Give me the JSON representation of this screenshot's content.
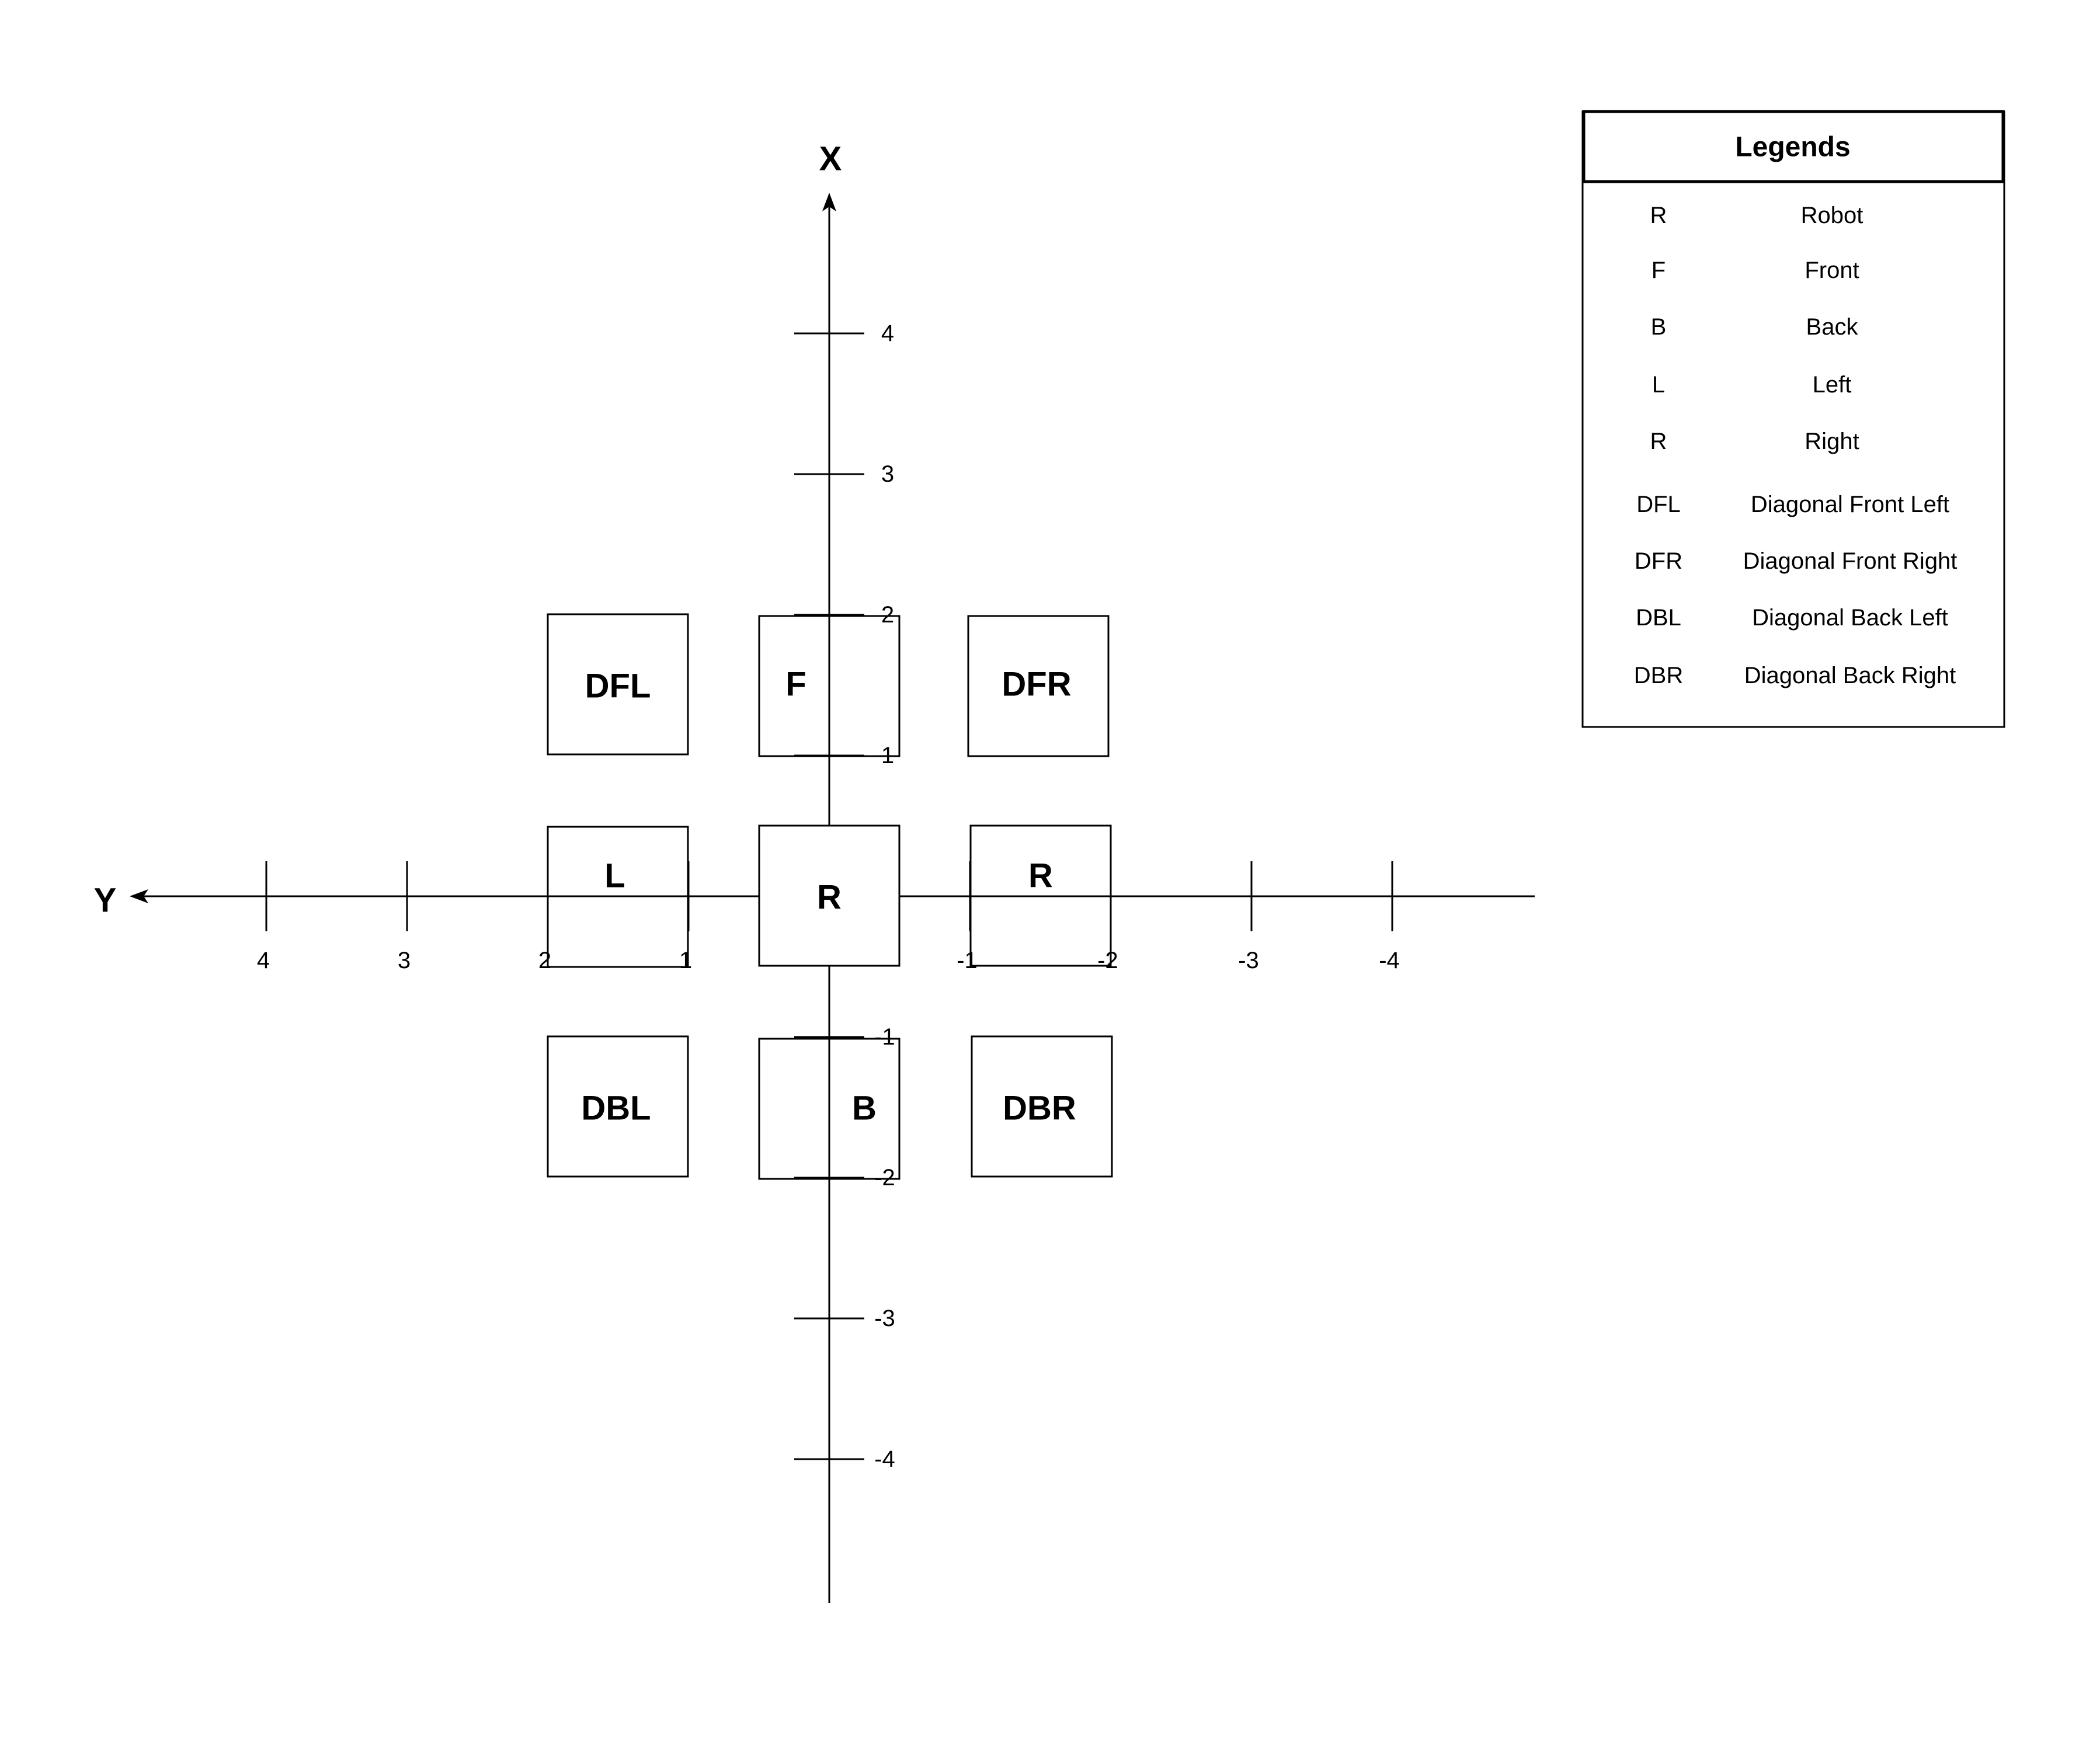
{
  "axes": {
    "x_label": "X",
    "y_label": "Y",
    "x_ticks": [
      4,
      3,
      2,
      1,
      -1,
      -2,
      -3,
      -4
    ],
    "y_ticks": [
      4,
      3,
      2,
      1,
      -1,
      -2,
      -3,
      -4
    ]
  },
  "boxes": {
    "robot": "R",
    "front": "F",
    "back": "B",
    "left": "L",
    "right": "R",
    "dfl": "DFL",
    "dfr": "DFR",
    "dbl": "DBL",
    "dbr": "DBR"
  },
  "legend": {
    "title": "Legends",
    "items": [
      {
        "abbr": "R",
        "meaning": "Robot"
      },
      {
        "abbr": "F",
        "meaning": "Front"
      },
      {
        "abbr": "B",
        "meaning": "Back"
      },
      {
        "abbr": "L",
        "meaning": "Left"
      },
      {
        "abbr": "R",
        "meaning": "Right"
      },
      {
        "abbr": "DFL",
        "meaning": "Diagonal Front Left"
      },
      {
        "abbr": "DFR",
        "meaning": "Diagonal Front Right"
      },
      {
        "abbr": "DBL",
        "meaning": "Diagonal Back Left"
      },
      {
        "abbr": "DBR",
        "meaning": "Diagonal Back Right"
      }
    ]
  }
}
